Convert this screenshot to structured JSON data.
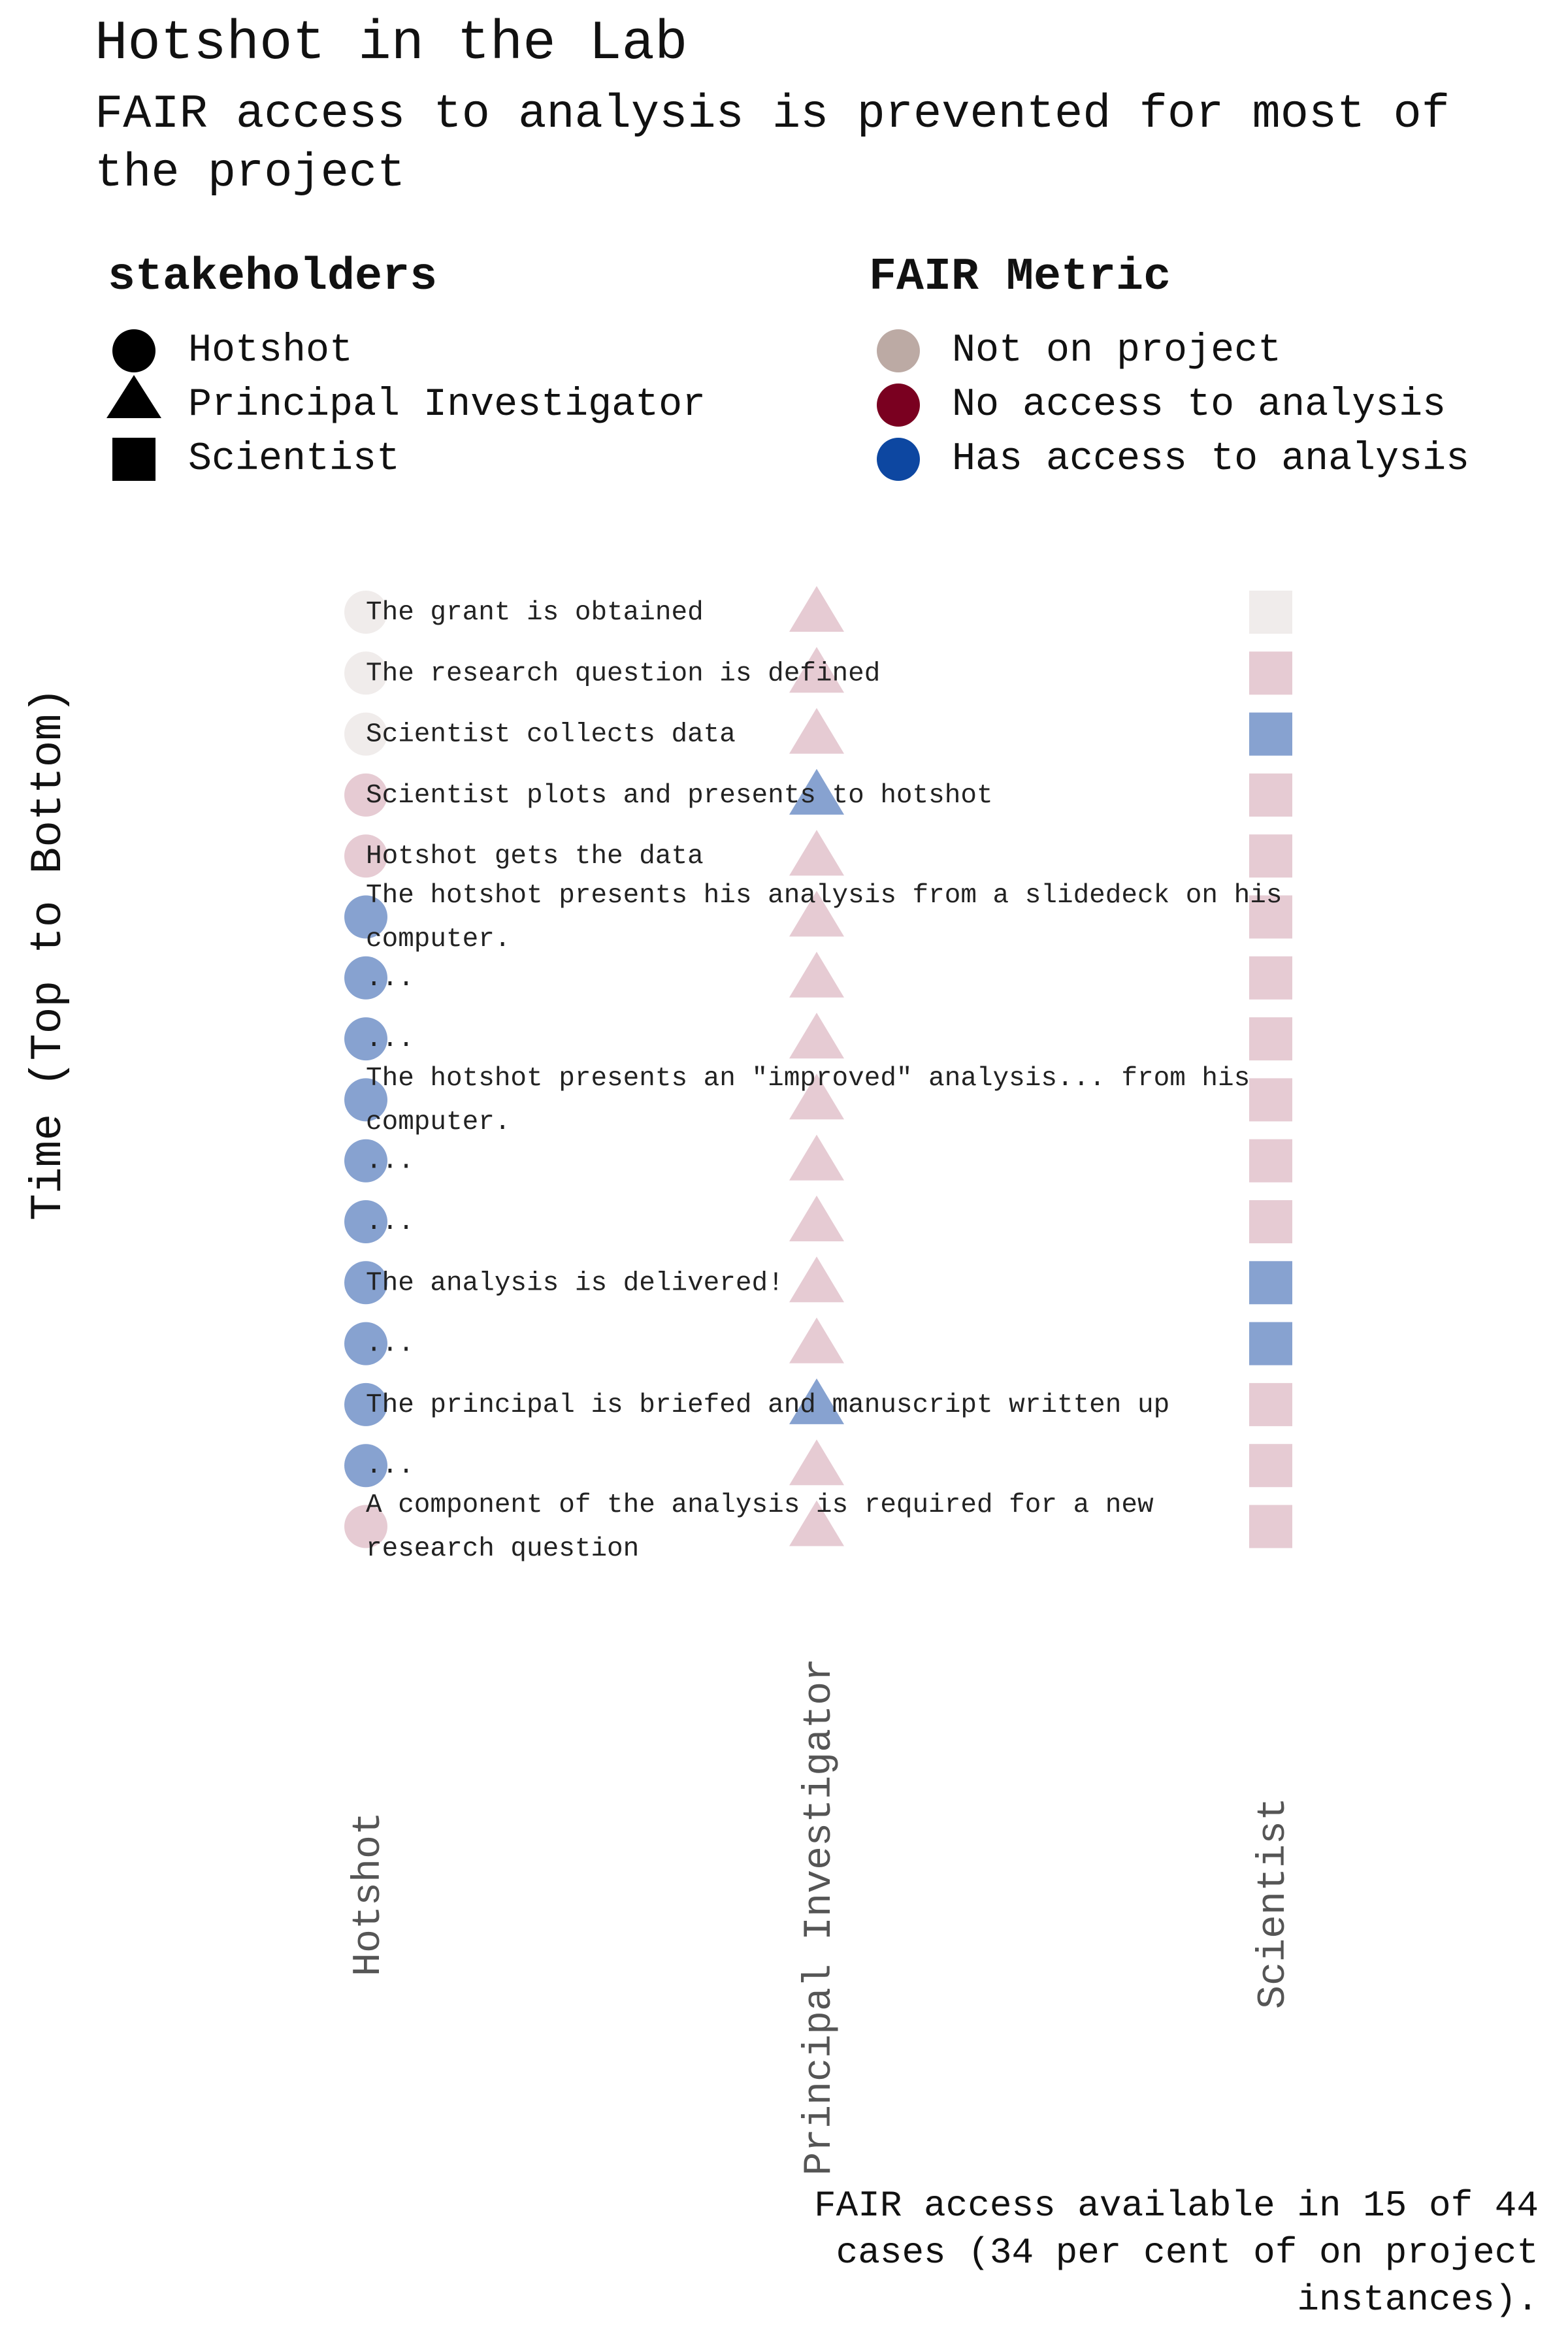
{
  "title": "Hotshot in the Lab",
  "subtitle": "FAIR access to analysis is prevented for most of the project",
  "legend": {
    "stakeholders_title": "stakeholders",
    "stakeholders": [
      {
        "label": "Hotshot",
        "shape": "circle-icon"
      },
      {
        "label": "Principal Investigator",
        "shape": "triangle-icon"
      },
      {
        "label": "Scientist",
        "shape": "square-icon"
      }
    ],
    "metric_title": "FAIR Metric",
    "metrics": [
      {
        "label": "Not on project",
        "color": "#bcaaa4"
      },
      {
        "label": "No access to analysis",
        "color": "#7a0020"
      },
      {
        "label": "Has access to analysis",
        "color": "#0d47a1"
      }
    ]
  },
  "footer": "FAIR access available in 15 of 44 cases (34 per cent of on project instances).",
  "chart_data": {
    "type": "scatter",
    "ylabel": "Time (Top to Bottom)",
    "columns": [
      "Hotshot",
      "Principal Investigator",
      "Scientist"
    ],
    "colors": {
      "not_on_project": "#f0eceb",
      "no_access": "#e6cbd3",
      "has_access": "#87a2d0"
    },
    "events": [
      {
        "label": "The grant is obtained",
        "states": [
          "not_on_project",
          "no_access",
          "not_on_project"
        ]
      },
      {
        "label": "The research question is defined",
        "states": [
          "not_on_project",
          "no_access",
          "no_access"
        ]
      },
      {
        "label": "Scientist collects data",
        "states": [
          "not_on_project",
          "no_access",
          "has_access"
        ]
      },
      {
        "label": "Scientist plots and presents to hotshot",
        "states": [
          "no_access",
          "has_access",
          "no_access"
        ]
      },
      {
        "label": "Hotshot gets the data",
        "states": [
          "no_access",
          "no_access",
          "no_access"
        ]
      },
      {
        "label": "The hotshot presents his analysis from a slidedeck on his computer.",
        "states": [
          "has_access",
          "no_access",
          "no_access"
        ]
      },
      {
        "label": "...",
        "states": [
          "has_access",
          "no_access",
          "no_access"
        ]
      },
      {
        "label": "...",
        "states": [
          "has_access",
          "no_access",
          "no_access"
        ]
      },
      {
        "label": "The hotshot presents an \"improved\" analysis... from his computer.",
        "states": [
          "has_access",
          "no_access",
          "no_access"
        ]
      },
      {
        "label": "...",
        "states": [
          "has_access",
          "no_access",
          "no_access"
        ]
      },
      {
        "label": "...",
        "states": [
          "has_access",
          "no_access",
          "no_access"
        ]
      },
      {
        "label": "The analysis is delivered!",
        "states": [
          "has_access",
          "no_access",
          "has_access"
        ]
      },
      {
        "label": "...",
        "states": [
          "has_access",
          "no_access",
          "has_access"
        ]
      },
      {
        "label": "The principal is briefed and manuscript written up",
        "states": [
          "has_access",
          "has_access",
          "no_access"
        ]
      },
      {
        "label": "...",
        "states": [
          "has_access",
          "no_access",
          "no_access"
        ]
      },
      {
        "label": "A component of the analysis is required for a new research question",
        "states": [
          "no_access",
          "no_access",
          "no_access"
        ]
      }
    ]
  }
}
